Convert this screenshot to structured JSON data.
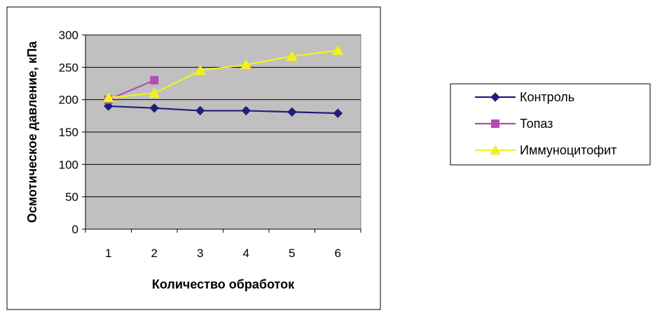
{
  "chart_data": {
    "type": "line",
    "title": "",
    "xlabel": "Количество обработок",
    "ylabel": "Осмотическое давление, кПа",
    "categories": [
      "1",
      "2",
      "3",
      "4",
      "5",
      "6"
    ],
    "ylim": [
      0,
      300
    ],
    "yticks": [
      "0",
      "50",
      "100",
      "150",
      "200",
      "250",
      "300"
    ],
    "grid": "horizontal",
    "legend_position": "right",
    "series": [
      {
        "name": "Контроль",
        "color": "#1F1F7A",
        "marker": "diamond",
        "values": [
          190,
          187,
          183,
          183,
          181,
          179
        ]
      },
      {
        "name": "Топаз",
        "color": "#B24CB2",
        "marker": "square",
        "values": [
          200,
          230,
          null,
          null,
          null,
          null
        ]
      },
      {
        "name": "Иммуноцитофит",
        "color": "#F2F21A",
        "marker": "triangle",
        "values": [
          203,
          210,
          245,
          254,
          267,
          276
        ]
      }
    ]
  }
}
